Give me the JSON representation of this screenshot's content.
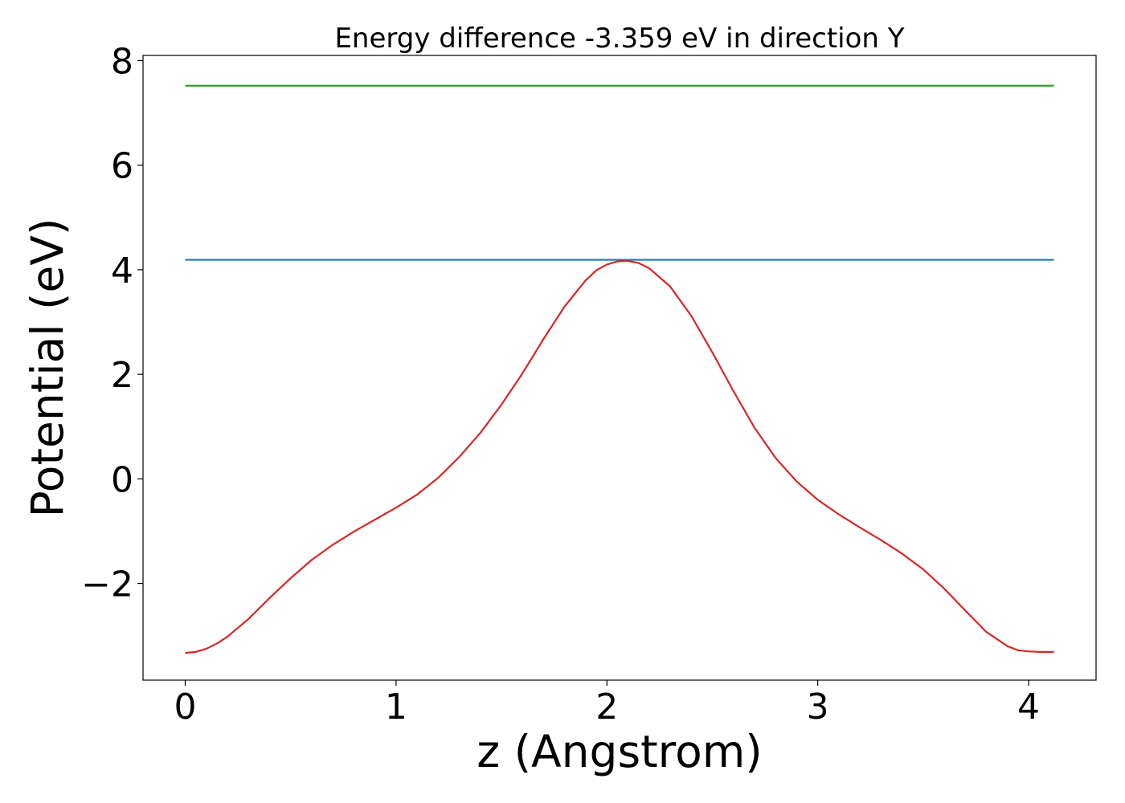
{
  "chart_data": {
    "type": "line",
    "title": "Energy difference -3.359 eV in direction Y",
    "xlabel": "z (Angstrom)",
    "ylabel": "Potential (eV)",
    "xlim": [
      -0.2,
      4.32
    ],
    "ylim": [
      -3.85,
      8.1
    ],
    "x_ticks": [
      0,
      1,
      2,
      3,
      4
    ],
    "x_tick_labels": [
      "0",
      "1",
      "2",
      "3",
      "4"
    ],
    "y_ticks": [
      -2,
      0,
      2,
      4,
      6,
      8
    ],
    "y_tick_labels": [
      "−2",
      "0",
      "2",
      "4",
      "6",
      "8"
    ],
    "grid": false,
    "legend": false,
    "series": [
      {
        "color": "#2ca02c",
        "x": [
          0,
          4.12
        ],
        "y": [
          7.52,
          7.52
        ]
      },
      {
        "color": "#1f77b4",
        "x": [
          0,
          4.12
        ],
        "y": [
          4.19,
          4.19
        ]
      },
      {
        "color": "#d62728",
        "x": [
          0,
          0.05,
          0.1,
          0.15,
          0.2,
          0.3,
          0.4,
          0.5,
          0.6,
          0.7,
          0.8,
          0.9,
          1.0,
          1.1,
          1.2,
          1.3,
          1.4,
          1.5,
          1.6,
          1.7,
          1.8,
          1.9,
          1.95,
          2.0,
          2.05,
          2.1,
          2.15,
          2.2,
          2.3,
          2.4,
          2.5,
          2.6,
          2.7,
          2.8,
          2.9,
          3.0,
          3.1,
          3.2,
          3.3,
          3.4,
          3.5,
          3.6,
          3.7,
          3.8,
          3.9,
          3.95,
          4.0,
          4.05,
          4.12
        ],
        "y": [
          -3.33,
          -3.31,
          -3.25,
          -3.15,
          -3.02,
          -2.68,
          -2.28,
          -1.9,
          -1.55,
          -1.26,
          -1.01,
          -0.78,
          -0.55,
          -0.3,
          0.02,
          0.42,
          0.88,
          1.42,
          2.02,
          2.68,
          3.3,
          3.8,
          3.99,
          4.1,
          4.16,
          4.17,
          4.13,
          4.03,
          3.68,
          3.12,
          2.42,
          1.68,
          0.98,
          0.4,
          -0.05,
          -0.4,
          -0.68,
          -0.93,
          -1.17,
          -1.43,
          -1.73,
          -2.1,
          -2.52,
          -2.93,
          -3.2,
          -3.28,
          -3.3,
          -3.31,
          -3.31
        ]
      }
    ]
  }
}
